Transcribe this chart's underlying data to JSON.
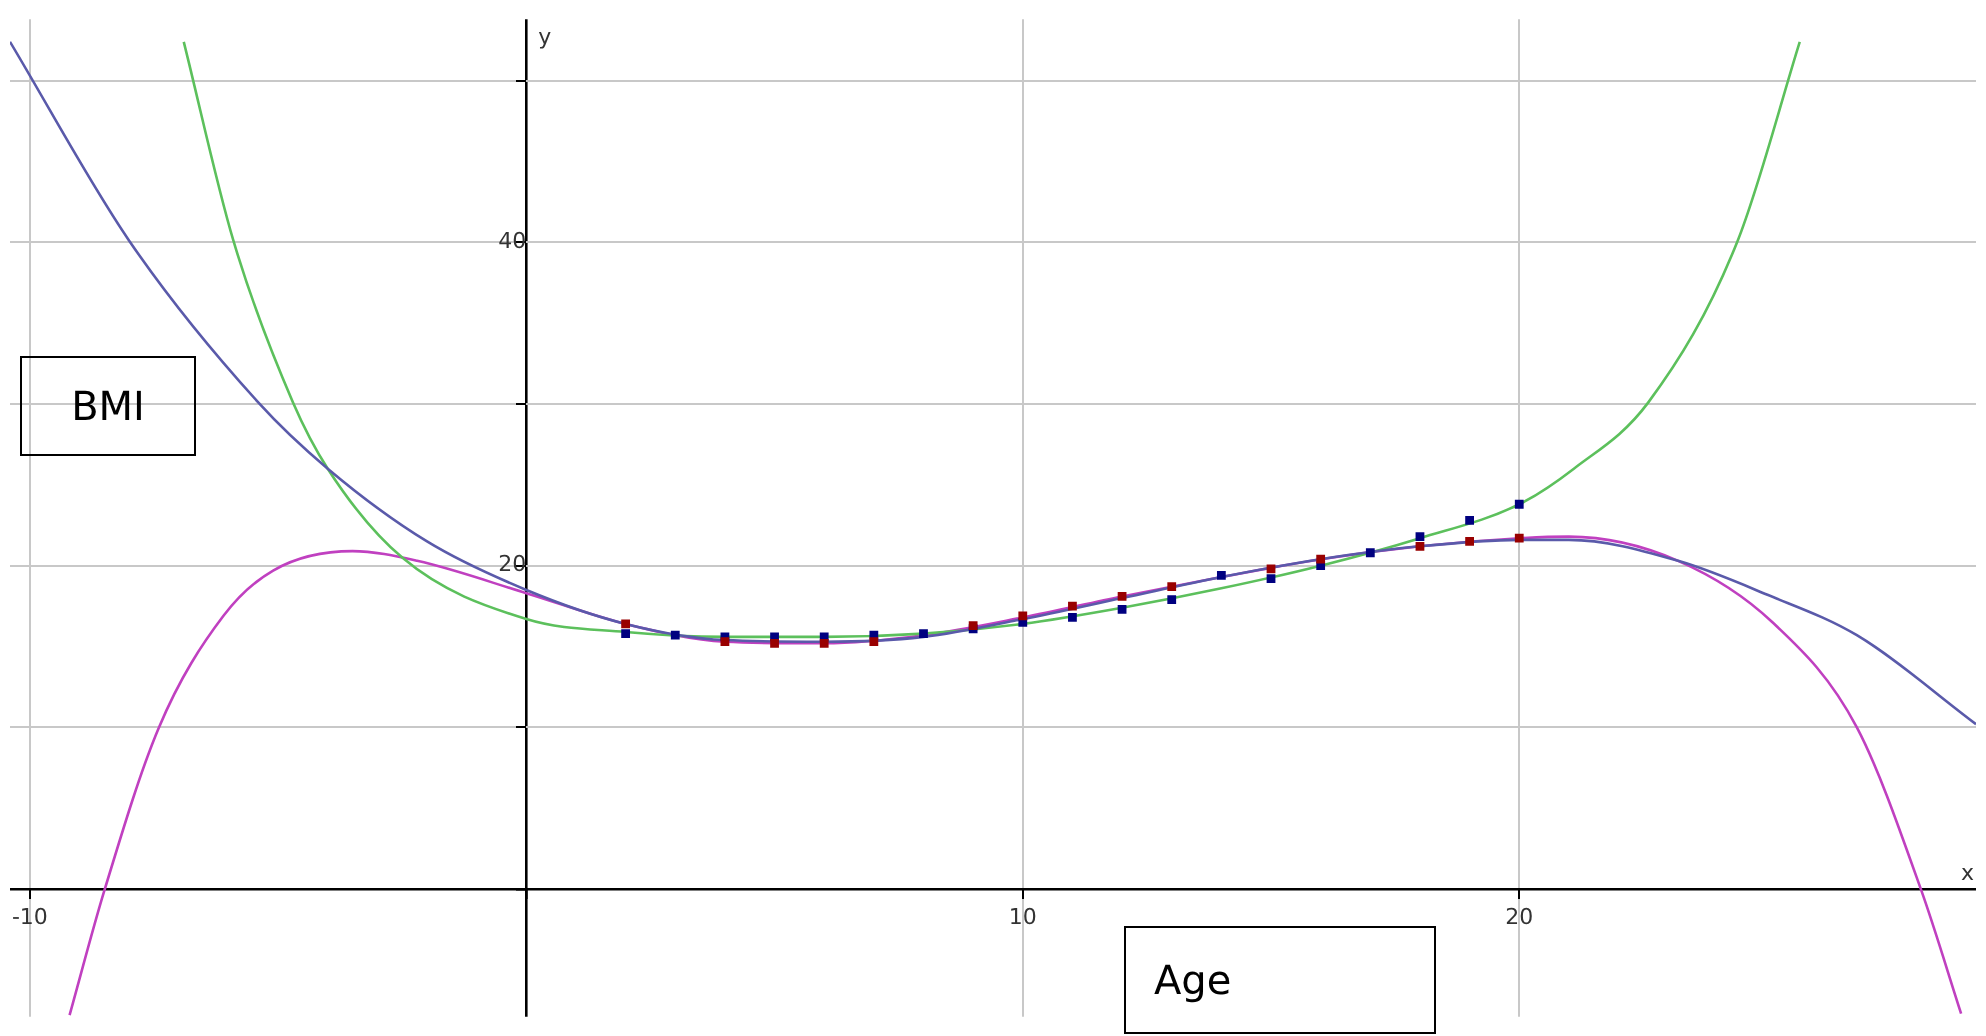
{
  "chart_data": {
    "type": "scatter",
    "xlabel": "Age",
    "ylabel": "BMI",
    "annotations": [
      "y",
      "x"
    ],
    "xlim": [
      -10.4,
      29.2
    ],
    "ylim": [
      -7.9,
      53.8
    ],
    "xticks": [
      -10,
      {
        "value": 0,
        "label": null
      },
      10,
      20
    ],
    "yticks": [
      {
        "value": 0,
        "label": null
      },
      {
        "value": 10,
        "label": null
      },
      20,
      {
        "value": 30,
        "label": null
      },
      40,
      {
        "value": 50,
        "label": null
      }
    ],
    "grid": true,
    "legend": false,
    "series": [
      {
        "type": "line",
        "marker": "none",
        "color": "#5a5aaa",
        "x": [
          -10.4,
          -8,
          -5.4,
          -4,
          -2,
          0,
          2,
          4,
          6,
          8,
          10,
          12,
          14,
          16,
          18,
          20,
          21,
          23.2,
          25,
          26.8,
          29.2
        ],
        "values": [
          52.4,
          40.1,
          30.1,
          26.0,
          21.5,
          18.5,
          16.4,
          15.4,
          15.3,
          15.6,
          16.7,
          18.0,
          19.3,
          20.4,
          21.2,
          21.6,
          21.6,
          20.3,
          18.2,
          15.7,
          10.2
        ]
      },
      {
        "type": "line",
        "marker": "none",
        "color": "#5cc05c",
        "x": [
          -6.9,
          -5.9,
          -4.7,
          -4,
          -2.5,
          0,
          2,
          4,
          6,
          8,
          10,
          12,
          14,
          16,
          18,
          20,
          21.1,
          22.6,
          24.4,
          25.65
        ],
        "values": [
          52.4,
          40.1,
          30.1,
          26.0,
          20.5,
          16.7,
          15.9,
          15.6,
          15.6,
          15.8,
          16.4,
          17.4,
          18.6,
          20.0,
          21.7,
          23.8,
          26.0,
          30.1,
          40.1,
          52.4
        ]
      },
      {
        "type": "line",
        "marker": "none",
        "color": "#c040c0",
        "x": [
          -9.2,
          -8.5,
          -7.4,
          -6.1,
          -5.1,
          -3.5,
          -2.2,
          0,
          2,
          4,
          6,
          8,
          10,
          12,
          14,
          16,
          18,
          20,
          21,
          23.2,
          25.1,
          26.8,
          28.1,
          28.9
        ],
        "values": [
          -7.8,
          -0.1,
          10.0,
          16.9,
          19.7,
          20.9,
          20.3,
          18.3,
          16.4,
          15.3,
          15.2,
          15.7,
          16.8,
          18.1,
          19.3,
          20.4,
          21.2,
          21.7,
          21.8,
          20.3,
          16.5,
          10.0,
          -0.1,
          -7.7
        ]
      },
      {
        "type": "scatter",
        "marker": "square",
        "color": "#000080",
        "x": [
          2,
          3,
          4,
          5,
          6,
          7,
          8,
          9,
          10,
          11,
          12,
          13,
          14,
          15,
          16,
          17,
          18,
          19,
          20
        ],
        "values": [
          15.8,
          15.7,
          15.6,
          15.6,
          15.6,
          15.7,
          15.8,
          16.1,
          16.5,
          16.8,
          17.3,
          17.9,
          19.4,
          19.2,
          20.0,
          20.8,
          21.8,
          22.8,
          23.8
        ]
      },
      {
        "type": "scatter",
        "marker": "square",
        "color": "#990000",
        "x": [
          2,
          3,
          4,
          5,
          6,
          7,
          8,
          9,
          10,
          11,
          12,
          13,
          14,
          15,
          16,
          17,
          18,
          19,
          20
        ],
        "values": [
          16.4,
          null,
          15.3,
          15.2,
          15.2,
          15.3,
          null,
          16.3,
          16.9,
          17.5,
          18.1,
          18.7,
          null,
          19.8,
          20.4,
          null,
          21.2,
          21.5,
          21.7
        ]
      }
    ]
  }
}
